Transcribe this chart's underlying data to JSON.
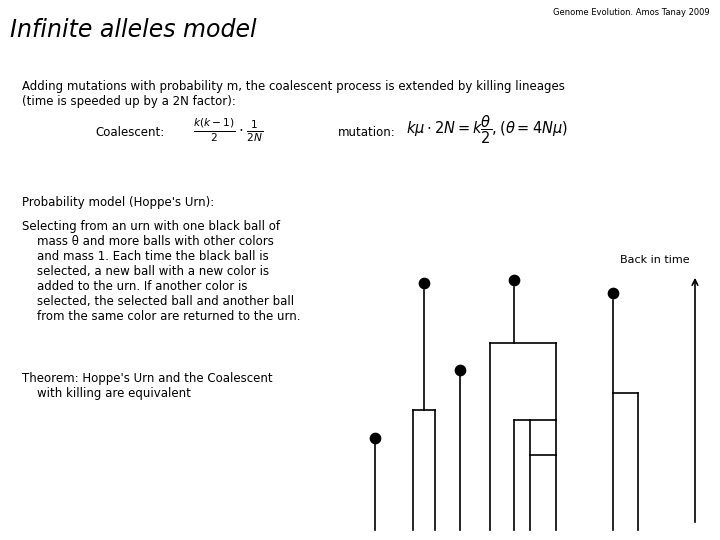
{
  "title": "Infinite alleles model",
  "subtitle": "Genome Evolution. Amos Tanay 2009",
  "bg_color": "#ffffff",
  "text_color": "#000000",
  "main_text_line1": "Adding mutations with probability m, the coalescent process is extended by killing lineages",
  "main_text_line2": "(time is speeded up by a 2N factor):",
  "coalescent_label": "Coalescent:",
  "mutation_label": "mutation:",
  "prob_model_label": "Probability model (Hoppe's Urn):",
  "urn_line1": "Selecting from an urn with one black ball of",
  "urn_line2": "    mass θ and more balls with other colors",
  "urn_line3": "    and mass 1. Each time the black ball is",
  "urn_line4": "    selected, a new ball with a new color is",
  "urn_line5": "    added to the urn. If another color is",
  "urn_line6": "    selected, the selected ball and another ball",
  "urn_line7": "    from the same color are returned to the urn.",
  "theorem_line1": "Theorem: Hoppe's Urn and the Coalescent",
  "theorem_line2": "    with killing are equivalent",
  "back_in_time_label": "Back in time"
}
